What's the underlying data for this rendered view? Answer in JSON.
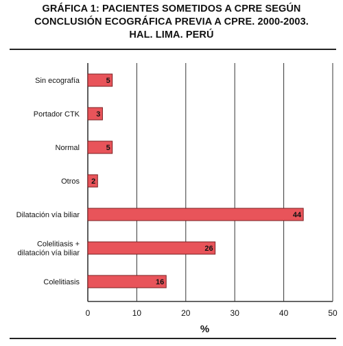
{
  "chart_data": {
    "type": "bar",
    "orientation": "horizontal",
    "title_lines": [
      "GRÁFICA 1: PACIENTES SOMETIDOS A CPRE SEGÚN",
      "CONCLUSIÓN ECOGRÁFICA PREVIA A CPRE. 2000-2003.",
      "HAL. LIMA. PERÚ"
    ],
    "categories": [
      [
        "Sin ecografía"
      ],
      [
        "Portador CTK"
      ],
      [
        "Normal"
      ],
      [
        "Otros"
      ],
      [
        "Dilatación vía biliar"
      ],
      [
        "Colelitiasis +",
        "dilatación vía biliar"
      ],
      [
        "Colelitiasis"
      ]
    ],
    "values": [
      5,
      3,
      5,
      2,
      44,
      26,
      16
    ],
    "xlabel": "%",
    "ylabel": "",
    "xlim": [
      0,
      50
    ],
    "ticks": [
      0,
      10,
      20,
      30,
      40,
      50
    ],
    "grid": true,
    "colors": {
      "bar": "#e8545a",
      "bar_stroke": "#7a1f22",
      "grid": "#333333"
    }
  }
}
